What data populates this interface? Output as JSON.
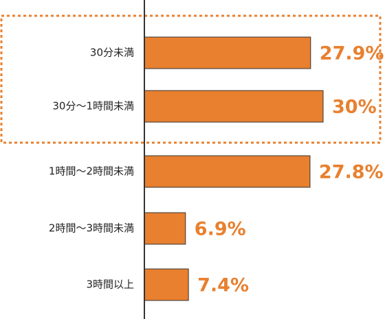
{
  "chart_data": {
    "type": "bar",
    "orientation": "horizontal",
    "categories": [
      "30分未満",
      "30分〜1時間未満",
      "1時間〜2時間未満",
      "2時間〜3時間未満",
      "3時間以上"
    ],
    "values": [
      27.9,
      30,
      27.8,
      6.9,
      7.4
    ],
    "value_labels": [
      "27.9%",
      "30%",
      "27.8%",
      "6.9%",
      "7.4%"
    ],
    "color": "#e8802f"
  }
}
